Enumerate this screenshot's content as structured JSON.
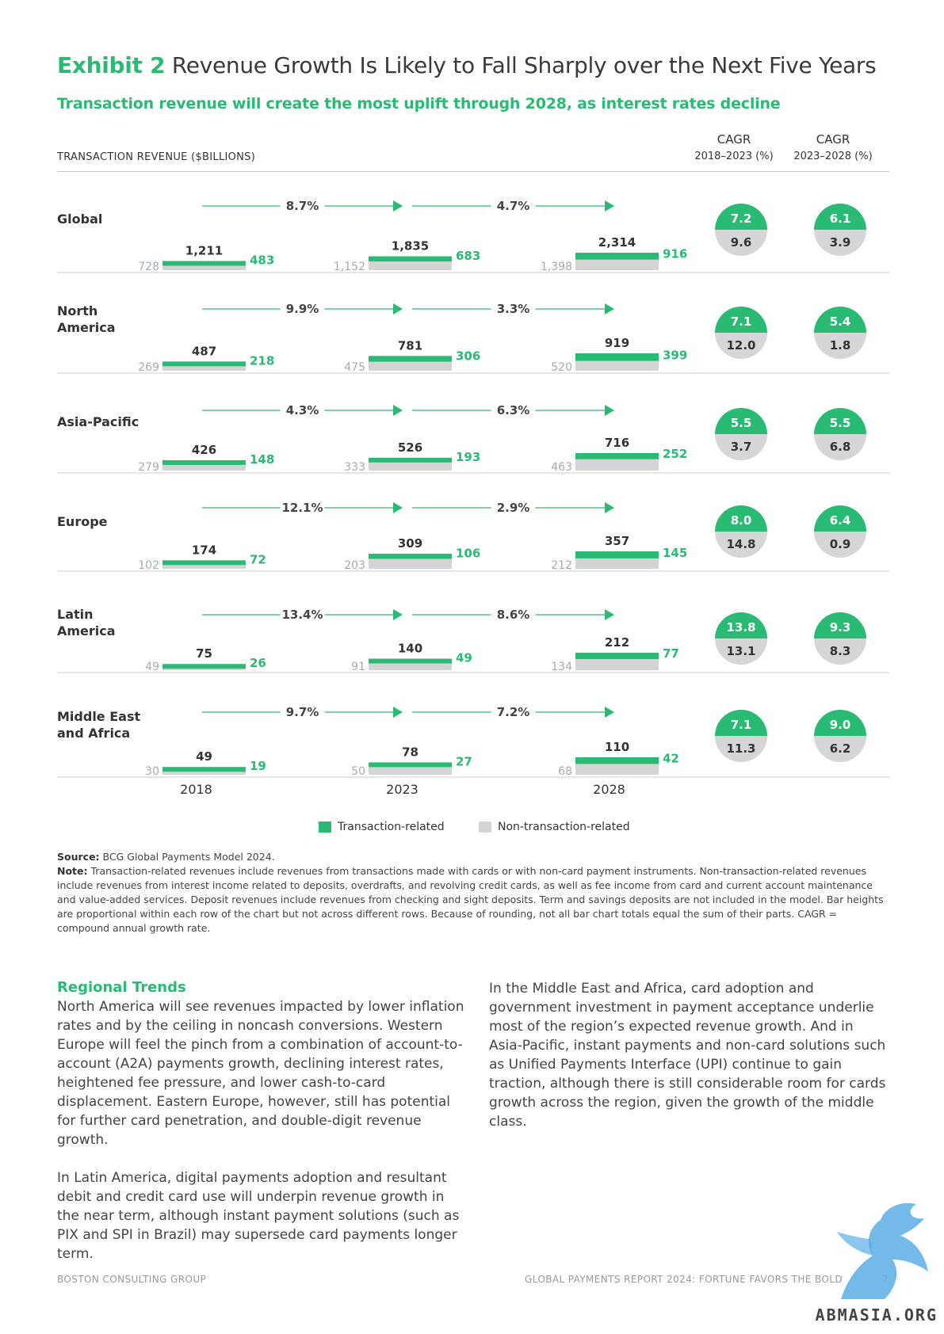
{
  "header": {
    "exhibit_label": "Exhibit 2",
    "title": "Revenue Growth Is Likely to Fall Sharply over the Next Five Years",
    "subtitle": "Transaction revenue will create the most uplift through 2028, as interest rates decline"
  },
  "chart_data": {
    "type": "bar",
    "ylabel": "TRANSACTION REVENUE ($BILLIONS)",
    "years": [
      "2018",
      "2023",
      "2028"
    ],
    "cagr_headers": [
      {
        "title": "CAGR",
        "period": "2018–2023 (%)"
      },
      {
        "title": "CAGR",
        "period": "2023–2028 (%)"
      }
    ],
    "legend": [
      {
        "label": "Transaction-related",
        "color": "#29ba74"
      },
      {
        "label": "Non-transaction-related",
        "color": "#d4d4d4"
      }
    ],
    "colors": {
      "transaction": "#29ba74",
      "non_transaction": "#d4d4d4",
      "circle_gray": "#d6d6d6"
    },
    "rows": [
      {
        "region": "Global",
        "totals": [
          "1,211",
          "1,835",
          "2,314"
        ],
        "non_transaction": [
          "728",
          "1,152",
          "1,398"
        ],
        "transaction": [
          "483",
          "683",
          "916"
        ],
        "growth": [
          "8.7%",
          "4.7%"
        ],
        "cagr_2018_2023": {
          "transaction": "7.2",
          "non_transaction": "9.6"
        },
        "cagr_2023_2028": {
          "transaction": "6.1",
          "non_transaction": "3.9"
        }
      },
      {
        "region": "North\nAmerica",
        "totals": [
          "487",
          "781",
          "919"
        ],
        "non_transaction": [
          "269",
          "475",
          "520"
        ],
        "transaction": [
          "218",
          "306",
          "399"
        ],
        "growth": [
          "9.9%",
          "3.3%"
        ],
        "cagr_2018_2023": {
          "transaction": "7.1",
          "non_transaction": "12.0"
        },
        "cagr_2023_2028": {
          "transaction": "5.4",
          "non_transaction": "1.8"
        }
      },
      {
        "region": "Asia-Pacific",
        "totals": [
          "426",
          "526",
          "716"
        ],
        "non_transaction": [
          "279",
          "333",
          "463"
        ],
        "transaction": [
          "148",
          "193",
          "252"
        ],
        "growth": [
          "4.3%",
          "6.3%"
        ],
        "cagr_2018_2023": {
          "transaction": "5.5",
          "non_transaction": "3.7"
        },
        "cagr_2023_2028": {
          "transaction": "5.5",
          "non_transaction": "6.8"
        }
      },
      {
        "region": "Europe",
        "totals": [
          "174",
          "309",
          "357"
        ],
        "non_transaction": [
          "102",
          "203",
          "212"
        ],
        "transaction": [
          "72",
          "106",
          "145"
        ],
        "growth": [
          "12.1%",
          "2.9%"
        ],
        "cagr_2018_2023": {
          "transaction": "8.0",
          "non_transaction": "14.8"
        },
        "cagr_2023_2028": {
          "transaction": "6.4",
          "non_transaction": "0.9"
        }
      },
      {
        "region": "Latin\nAmerica",
        "totals": [
          "75",
          "140",
          "212"
        ],
        "non_transaction": [
          "49",
          "91",
          "134"
        ],
        "transaction": [
          "26",
          "49",
          "77"
        ],
        "growth": [
          "13.4%",
          "8.6%"
        ],
        "cagr_2018_2023": {
          "transaction": "13.8",
          "non_transaction": "13.1"
        },
        "cagr_2023_2028": {
          "transaction": "9.3",
          "non_transaction": "8.3"
        }
      },
      {
        "region": "Middle East\nand Africa",
        "totals": [
          "49",
          "78",
          "110"
        ],
        "non_transaction": [
          "30",
          "50",
          "68"
        ],
        "transaction": [
          "19",
          "27",
          "42"
        ],
        "growth": [
          "9.7%",
          "7.2%"
        ],
        "cagr_2018_2023": {
          "transaction": "7.1",
          "non_transaction": "11.3"
        },
        "cagr_2023_2028": {
          "transaction": "9.0",
          "non_transaction": "6.2"
        }
      }
    ]
  },
  "notes": {
    "source_label": "Source:",
    "source_text": "BCG Global Payments Model 2024.",
    "note_label": "Note:",
    "note_text": "Transaction-related revenues include revenues from transactions made with cards or with non-card payment instruments. Non-transaction-related revenues include revenues from interest income related to deposits, overdrafts, and revolving credit cards, as well as fee income from card and current account maintenance and value-added services. Deposit revenues include revenues from checking and sight deposits. Term and savings deposits are not included in the model. Bar heights are proportional within each row of the chart but not across different rows. Because of rounding, not all bar chart totals equal the sum of their parts. CAGR = compound annual growth rate."
  },
  "body": {
    "section_title": "Regional Trends",
    "left_p1": "North America will see revenues impacted by lower inflation rates and by the ceiling in noncash conversions. Western Europe will feel the pinch from a combination of account-to-account (A2A) payments growth, declining interest rates, heightened fee pressure, and lower cash-to-card displacement. Eastern Europe, however, still has potential for further card penetration, and double-digit revenue growth.",
    "left_p2": "In Latin America, digital payments adoption and resultant debit and credit card use will underpin revenue growth in the near term, although instant payment solutions (such as PIX and SPI in Brazil) may supersede card payments longer term.",
    "right_p1": "In the Middle East and Africa, card adoption and government investment in payment acceptance underlie most of the region’s expected revenue growth. And in Asia-Pacific, instant payments and non-card solutions such as Unified Payments Interface (UPI) continue to gain traction, although there is still considerable room for cards growth across the region, given the growth of the middle class."
  },
  "footer": {
    "left": "BOSTON CONSULTING GROUP",
    "right": "GLOBAL PAYMENTS REPORT 2024: FORTUNE FAVORS THE BOLD",
    "page": "7",
    "watermark": "ABMASIA.ORG"
  }
}
